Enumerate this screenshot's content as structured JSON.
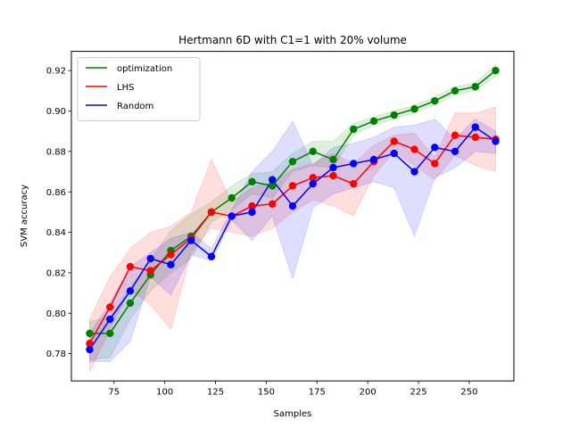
{
  "chart_data": {
    "type": "line",
    "title": "Hertmann 6D with C1=1 with 20% volume",
    "xlabel": "Samples",
    "ylabel": "SVM accuracy",
    "xlim": [
      54,
      272
    ],
    "ylim": [
      0.7665,
      0.9295
    ],
    "xticks": [
      75,
      100,
      125,
      150,
      175,
      200,
      225,
      250
    ],
    "xtick_labels": [
      "75",
      "100",
      "125",
      "150",
      "175",
      "200",
      "225",
      "250"
    ],
    "yticks": [
      0.78,
      0.8,
      0.82,
      0.84,
      0.86,
      0.88,
      0.9,
      0.92
    ],
    "ytick_labels": [
      "0.78",
      "0.80",
      "0.82",
      "0.84",
      "0.86",
      "0.88",
      "0.90",
      "0.92"
    ],
    "x": [
      63,
      73,
      83,
      93,
      103,
      113,
      123,
      133,
      143,
      153,
      163,
      173,
      183,
      193,
      203,
      213,
      223,
      233,
      243,
      253,
      263
    ],
    "legend_position": "top-left",
    "grid": false,
    "series": [
      {
        "name": "optimization",
        "color": "#008000",
        "values": [
          0.79,
          0.79,
          0.805,
          0.819,
          0.831,
          0.838,
          0.85,
          0.857,
          0.865,
          0.863,
          0.875,
          0.88,
          0.876,
          0.891,
          0.895,
          0.898,
          0.901,
          0.905,
          0.91,
          0.912,
          0.92
        ],
        "lower": [
          0.777,
          0.778,
          0.797,
          0.811,
          0.82,
          0.827,
          0.845,
          0.851,
          0.859,
          0.857,
          0.87,
          0.873,
          0.872,
          0.888,
          0.893,
          0.896,
          0.899,
          0.903,
          0.908,
          0.91,
          0.917
        ],
        "upper": [
          0.796,
          0.798,
          0.813,
          0.826,
          0.841,
          0.849,
          0.855,
          0.863,
          0.869,
          0.87,
          0.879,
          0.885,
          0.885,
          0.894,
          0.897,
          0.9,
          0.903,
          0.907,
          0.912,
          0.914,
          0.923
        ]
      },
      {
        "name": "LHS",
        "color": "#ff0000",
        "values": [
          0.785,
          0.803,
          0.823,
          0.821,
          0.829,
          0.837,
          0.85,
          0.848,
          0.853,
          0.854,
          0.863,
          0.867,
          0.868,
          0.864,
          0.875,
          0.885,
          0.881,
          0.874,
          0.888,
          0.887,
          0.886
        ],
        "lower": [
          0.771,
          0.792,
          0.812,
          0.804,
          0.792,
          0.83,
          0.842,
          0.84,
          0.838,
          0.842,
          0.85,
          0.856,
          0.853,
          0.848,
          0.868,
          0.88,
          0.873,
          0.866,
          0.878,
          0.873,
          0.87
        ],
        "upper": [
          0.797,
          0.818,
          0.832,
          0.84,
          0.843,
          0.85,
          0.876,
          0.855,
          0.862,
          0.865,
          0.871,
          0.874,
          0.879,
          0.874,
          0.883,
          0.888,
          0.889,
          0.877,
          0.899,
          0.899,
          0.902
        ]
      },
      {
        "name": "Random",
        "color": "#0000ff",
        "values": [
          0.782,
          0.797,
          0.811,
          0.827,
          0.824,
          0.836,
          0.828,
          0.848,
          0.85,
          0.866,
          0.853,
          0.864,
          0.872,
          0.874,
          0.876,
          0.879,
          0.87,
          0.882,
          0.88,
          0.892,
          0.885
        ],
        "lower": [
          0.776,
          0.776,
          0.786,
          0.818,
          0.809,
          0.829,
          0.826,
          0.846,
          0.836,
          0.848,
          0.817,
          0.852,
          0.859,
          0.862,
          0.865,
          0.862,
          0.838,
          0.867,
          0.872,
          0.88,
          0.879
        ],
        "upper": [
          0.79,
          0.805,
          0.823,
          0.83,
          0.837,
          0.84,
          0.832,
          0.851,
          0.87,
          0.88,
          0.895,
          0.873,
          0.882,
          0.884,
          0.887,
          0.892,
          0.893,
          0.896,
          0.886,
          0.896,
          0.89
        ]
      }
    ]
  }
}
